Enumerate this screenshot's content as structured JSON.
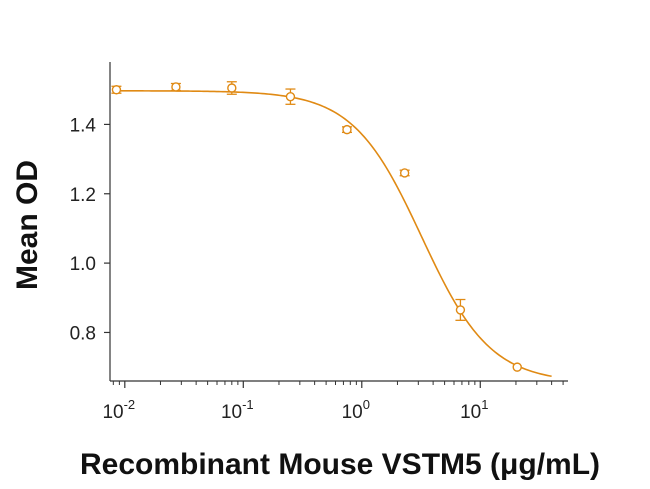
{
  "chart_data": {
    "type": "scatter",
    "title": "",
    "xlabel": "Recombinant Mouse VSTM5 (μg/mL)",
    "ylabel": "Mean OD",
    "x_scale": "log",
    "xlim": [
      0.0075,
      55
    ],
    "ylim": [
      0.66,
      1.58
    ],
    "x_ticks": [
      {
        "value": 0.01,
        "base": "10",
        "exp": "-2"
      },
      {
        "value": 0.1,
        "base": "10",
        "exp": "-1"
      },
      {
        "value": 1,
        "base": "10",
        "exp": "0"
      },
      {
        "value": 10,
        "base": "10",
        "exp": "1"
      }
    ],
    "y_ticks": [
      {
        "value": 0.8,
        "label": "0.8"
      },
      {
        "value": 1.0,
        "label": "1.0"
      },
      {
        "value": 1.2,
        "label": "1.2"
      },
      {
        "value": 1.4,
        "label": "1.4"
      }
    ],
    "grid": false,
    "color": "#E08A14",
    "series": [
      {
        "points": [
          {
            "x": 0.0085,
            "y": 1.5,
            "err": 0.01
          },
          {
            "x": 0.027,
            "y": 1.508,
            "err": 0.01
          },
          {
            "x": 0.08,
            "y": 1.505,
            "err": 0.018
          },
          {
            "x": 0.25,
            "y": 1.48,
            "err": 0.022
          },
          {
            "x": 0.75,
            "y": 1.385,
            "err": 0.008
          },
          {
            "x": 2.3,
            "y": 1.26,
            "err": 0.008
          },
          {
            "x": 6.8,
            "y": 0.865,
            "err": 0.03
          },
          {
            "x": 20.5,
            "y": 0.7,
            "err": 0
          }
        ]
      }
    ],
    "fit": {
      "bottom": 0.655,
      "top": 1.497,
      "ec50": 3.2,
      "hill": 1.5,
      "x_range": [
        0.0085,
        40
      ]
    }
  }
}
